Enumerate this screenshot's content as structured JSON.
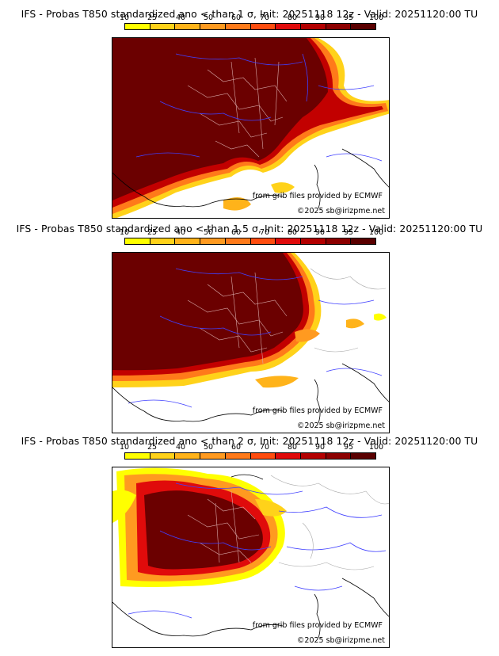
{
  "colorbar": {
    "ticks": [
      "10",
      "25",
      "40",
      "50",
      "60",
      "70",
      "80",
      "90",
      "95",
      "100"
    ],
    "colors": [
      "#ffff00",
      "#ffd21a",
      "#ffb31a",
      "#ff9a20",
      "#ff7a1a",
      "#ff4d0f",
      "#e00b0b",
      "#b30000",
      "#8c0000",
      "#5a0000"
    ]
  },
  "panels": [
    {
      "title": "IFS - Probas T850  standardized ano < than 1 σ, Init: 20251118 12z - Valid: 20251120:00 TU",
      "credit_source": "from grib files provided by ECMWF",
      "credit_author": "©2025 sb@irizpme.net"
    },
    {
      "title": "IFS - Probas T850  standardized ano < than 1.5 σ, Init: 20251118 12z - Valid: 20251120:00 TU",
      "credit_source": "from grib files provided by ECMWF",
      "credit_author": "©2025 sb@irizpme.net"
    },
    {
      "title": "IFS - Probas T850  standardized ano < than 2 σ, Init: 20251118 12z - Valid: 20251120:00 TU",
      "credit_source": "from grib files provided by ECMWF",
      "credit_author": "©2025 sb@irizpme.net"
    }
  ]
}
